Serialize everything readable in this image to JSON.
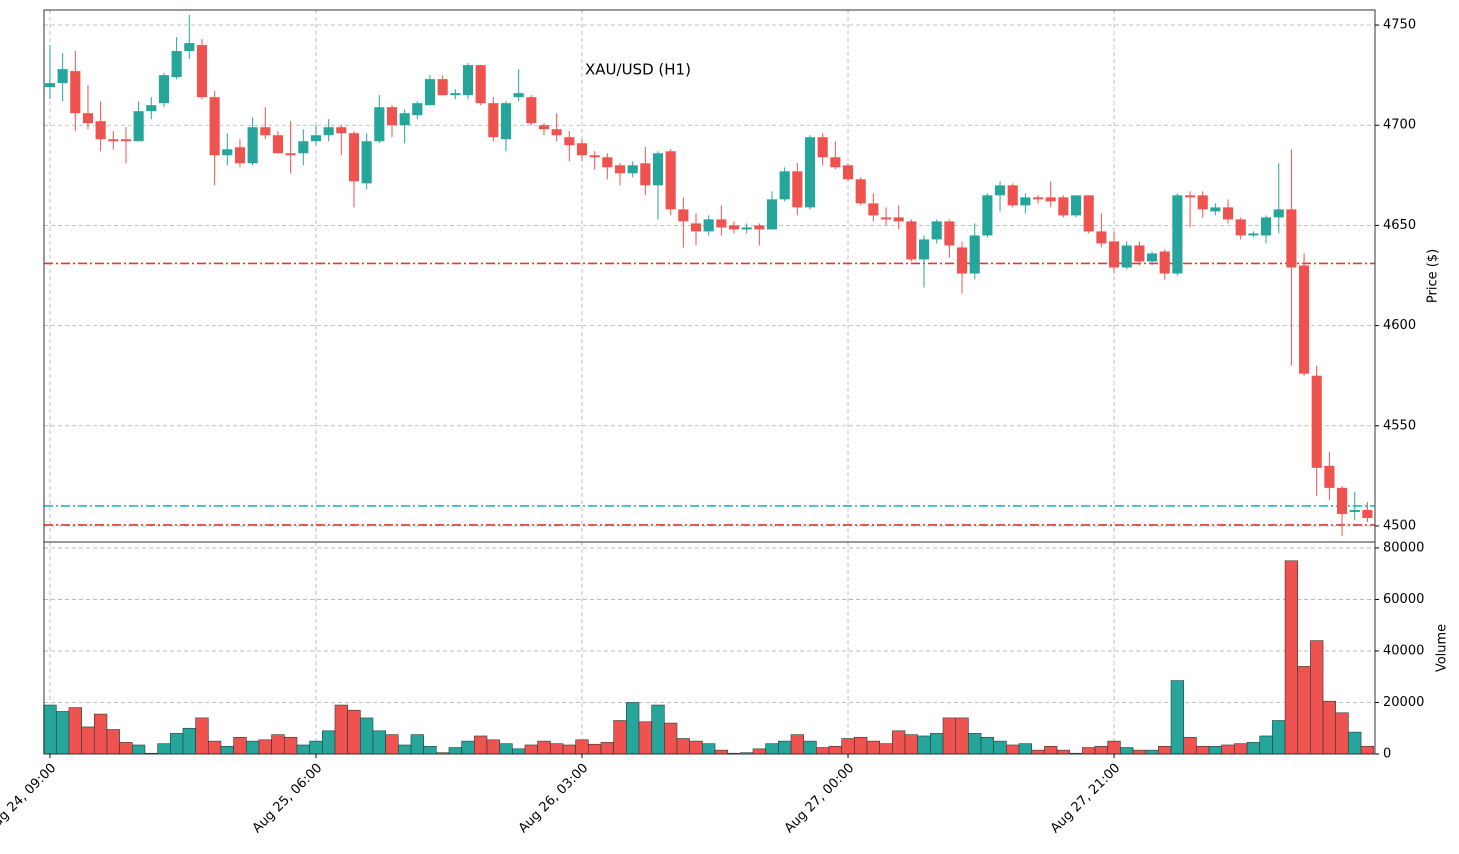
{
  "chart_data": [
    {
      "type": "candlestick",
      "title": "XAU/USD (H1)",
      "ylabel": "Price ($)",
      "up_color": "#26a69a",
      "down_color": "#ef5350",
      "grid": true,
      "xlim": [
        -0.47,
        104.6
      ],
      "xticks": [
        {
          "value": 0,
          "label": "Aug 24, 09:00"
        },
        {
          "value": 21,
          "label": "Aug 25, 06:00"
        },
        {
          "value": 42,
          "label": "Aug 26, 03:00"
        },
        {
          "value": 63,
          "label": "Aug 27, 00:00"
        },
        {
          "value": 84,
          "label": "Aug 27, 21:00"
        }
      ],
      "ylim": [
        4492,
        4757.5
      ],
      "yticks": [
        4500,
        4550,
        4600,
        4650,
        4700,
        4750
      ],
      "hlines": [
        {
          "value": 4631,
          "color": "#e53935"
        },
        {
          "value": 4510,
          "color": "#26b5c8"
        },
        {
          "value": 4500.5,
          "color": "#e53935"
        }
      ],
      "open": [
        4719,
        4721,
        4727,
        4706,
        4702,
        4693,
        4693,
        4692,
        4707,
        4711,
        4724,
        4737,
        4740,
        4714,
        4685,
        4689,
        4681,
        4699,
        4695,
        4686,
        4686,
        4692,
        4695,
        4699,
        4696,
        4671,
        4692,
        4709,
        4700,
        4705,
        4710,
        4723,
        4715,
        4715,
        4730,
        4711,
        4693,
        4714,
        4714,
        4700,
        4698,
        4694,
        4691,
        4685,
        4684,
        4680,
        4676,
        4681,
        4670,
        4687,
        4658,
        4651,
        4647,
        4653,
        4650,
        4648,
        4650,
        4648,
        4663,
        4677,
        4659,
        4694,
        4684,
        4680,
        4673,
        4661,
        4654,
        4654,
        4652,
        4633,
        4643,
        4652,
        4639,
        4626,
        4645,
        4665,
        4670,
        4660,
        4664,
        4664,
        4664,
        4655,
        4665,
        4647,
        4642,
        4629,
        4640,
        4632,
        4637,
        4626,
        4665,
        4665,
        4657,
        4659,
        4653,
        4645,
        4645,
        4654,
        4658,
        4630,
        4575,
        4530,
        4519,
        4507,
        4508
      ],
      "high": [
        4740,
        4736,
        4737,
        4720,
        4712,
        4697,
        4699,
        4712,
        4714,
        4726,
        4744,
        4755,
        4743,
        4717,
        4696,
        4693,
        4704,
        4709,
        4697,
        4702,
        4698,
        4700,
        4703,
        4700,
        4697,
        4696,
        4715,
        4710,
        4708,
        4712,
        4725,
        4725,
        4718,
        4731,
        4730,
        4714,
        4712,
        4728,
        4715,
        4701,
        4706,
        4697,
        4693,
        4687,
        4686,
        4681,
        4682,
        4689,
        4687,
        4688,
        4664,
        4656,
        4655,
        4660,
        4652,
        4651,
        4651,
        4667,
        4679,
        4681,
        4695,
        4696,
        4692,
        4681,
        4674,
        4666,
        4659,
        4660,
        4653,
        4645,
        4653,
        4653,
        4642,
        4651,
        4666,
        4672,
        4671,
        4666,
        4665,
        4672,
        4665,
        4665,
        4665,
        4656,
        4647,
        4642,
        4642,
        4637,
        4638,
        4666,
        4667,
        4667,
        4661,
        4663,
        4654,
        4647,
        4655,
        4681,
        4688,
        4636,
        4580,
        4537,
        4520,
        4517,
        4512
      ],
      "low": [
        4713,
        4712,
        4697,
        4698,
        4687,
        4688,
        4681,
        4692,
        4703,
        4709,
        4723,
        4733,
        4713,
        4670,
        4680,
        4679,
        4680,
        4693,
        4686,
        4676,
        4680,
        4690,
        4692,
        4685,
        4659,
        4668,
        4691,
        4694,
        4691,
        4703,
        4710,
        4715,
        4713,
        4713,
        4710,
        4692,
        4687,
        4712,
        4700,
        4695,
        4692,
        4682,
        4682,
        4678,
        4673,
        4670,
        4674,
        4665,
        4653,
        4655,
        4639,
        4640,
        4645,
        4645,
        4646,
        4646,
        4640,
        4648,
        4662,
        4655,
        4658,
        4680,
        4678,
        4672,
        4660,
        4652,
        4650,
        4648,
        4632,
        4619,
        4641,
        4634,
        4616,
        4623,
        4644,
        4657,
        4659,
        4656,
        4661,
        4659,
        4654,
        4654,
        4646,
        4639,
        4626,
        4628,
        4630,
        4630,
        4623,
        4625,
        4649,
        4654,
        4655,
        4651,
        4643,
        4644,
        4641,
        4646,
        4580,
        4575,
        4515,
        4513,
        4495,
        4503,
        4502
      ],
      "close": [
        4721,
        4728,
        4706,
        4701,
        4693,
        4692,
        4692,
        4707,
        4710,
        4725,
        4737,
        4741,
        4714,
        4685,
        4688,
        4681,
        4699,
        4695,
        4686,
        4685,
        4692,
        4695,
        4699,
        4696,
        4672,
        4692,
        4709,
        4700,
        4706,
        4711,
        4723,
        4715,
        4716,
        4730,
        4711,
        4694,
        4711,
        4716,
        4701,
        4698,
        4695,
        4690,
        4685,
        4684,
        4679,
        4676,
        4680,
        4670,
        4686,
        4658,
        4652,
        4647,
        4653,
        4649,
        4648,
        4649,
        4648,
        4663,
        4677,
        4659,
        4694,
        4684,
        4679,
        4673,
        4661,
        4655,
        4653,
        4652,
        4633,
        4643,
        4652,
        4640,
        4626,
        4645,
        4665,
        4670,
        4660,
        4664,
        4663,
        4662,
        4655,
        4665,
        4647,
        4641,
        4629,
        4640,
        4632,
        4636,
        4626,
        4665,
        4664,
        4658,
        4659,
        4653,
        4645,
        4646,
        4654,
        4658,
        4629,
        4576,
        4529,
        4519,
        4506,
        4508,
        4504
      ]
    },
    {
      "type": "bar",
      "ylabel": "Volume",
      "grid": true,
      "ylim": [
        0,
        82300
      ],
      "yticks": [
        0,
        20000,
        40000,
        60000,
        80000
      ],
      "values": [
        19000,
        16500,
        18000,
        10500,
        15500,
        9500,
        4500,
        3500,
        300,
        4000,
        8000,
        10000,
        14000,
        5000,
        3000,
        6500,
        5000,
        5500,
        7500,
        6500,
        3500,
        5000,
        9000,
        19000,
        17000,
        14000,
        9000,
        7500,
        3500,
        7500,
        3000,
        500,
        2500,
        5000,
        7000,
        5500,
        4000,
        2000,
        3500,
        5000,
        4000,
        3500,
        5500,
        3800,
        4500,
        13000,
        20000,
        12500,
        19000,
        12000,
        6000,
        5000,
        4000,
        1500,
        300,
        500,
        2000,
        4000,
        5000,
        7500,
        5000,
        2500,
        3000,
        6000,
        6500,
        5000,
        4000,
        9000,
        7500,
        7000,
        8000,
        14000,
        14000,
        8000,
        6500,
        5000,
        3500,
        4000,
        1500,
        3000,
        1500,
        300,
        2500,
        3000,
        5000,
        2500,
        1500,
        1500,
        3000,
        28500,
        6500,
        3000,
        3000,
        3500,
        4000,
        4500,
        7000,
        13000,
        75000,
        34000,
        44000,
        20500,
        16000,
        8500,
        3000
      ]
    }
  ]
}
